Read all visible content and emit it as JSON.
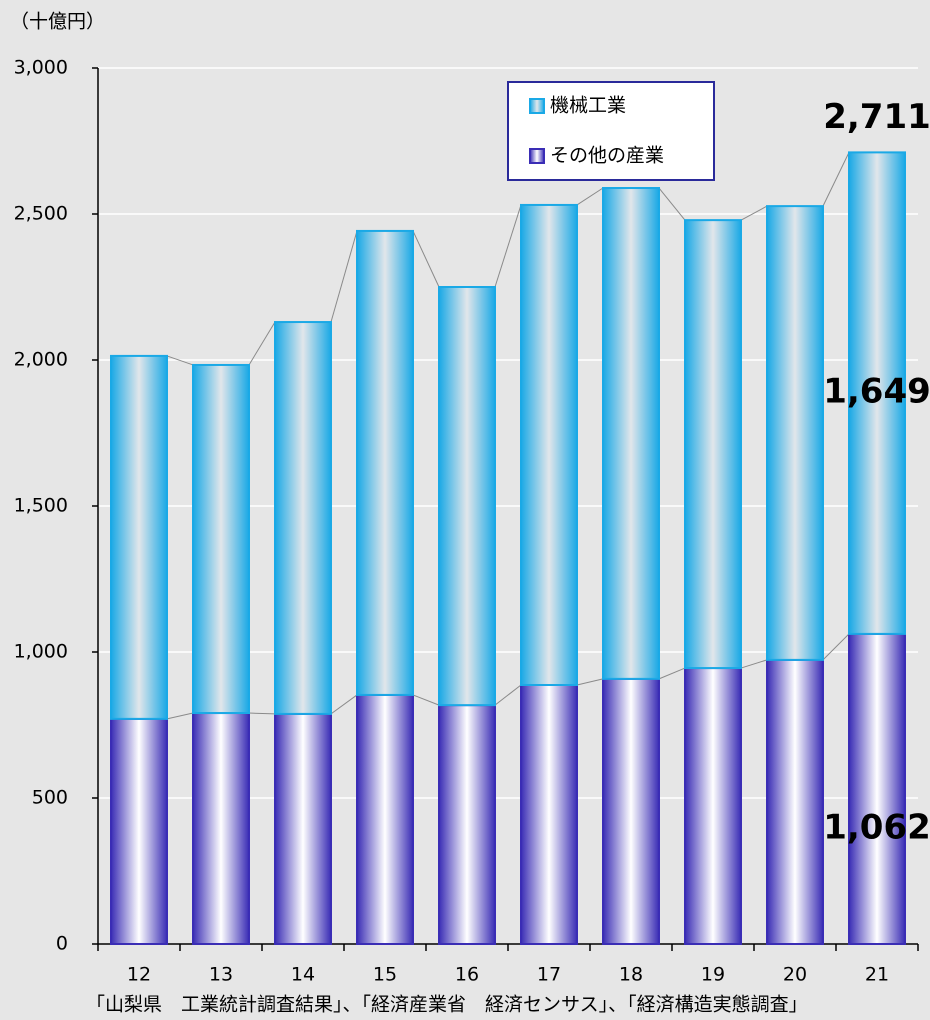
{
  "chart_data": {
    "type": "stacked_bar",
    "y_axis_label": "（十億円）",
    "categories": [
      "12",
      "13",
      "14",
      "15",
      "16",
      "17",
      "18",
      "19",
      "20",
      "21"
    ],
    "series": [
      {
        "name": "その他の産業",
        "color": "#3a2db5",
        "values": [
          771,
          791,
          788,
          853,
          818,
          887,
          908,
          945,
          973,
          1062
        ],
        "value_labels": [
          null,
          null,
          null,
          null,
          null,
          null,
          null,
          null,
          null,
          "1,062"
        ]
      },
      {
        "name": "機械工業",
        "color": "#1aa9e6",
        "values": [
          1243,
          1192,
          1342,
          1589,
          1432,
          1644,
          1681,
          1534,
          1554,
          1649
        ],
        "value_labels": [
          null,
          null,
          null,
          null,
          null,
          null,
          null,
          null,
          null,
          "1,649"
        ]
      }
    ],
    "annotations": [
      {
        "value": 2711,
        "label": "2,711"
      }
    ],
    "ylim": [
      0,
      3000
    ],
    "yticks": [
      0,
      500,
      {
        "value": 1000,
        "label": "1,000"
      },
      {
        "value": 1500,
        "label": "1,500"
      },
      {
        "value": 2000,
        "label": "2,000"
      },
      {
        "value": 2500,
        "label": "2,500"
      },
      {
        "value": 3000,
        "label": "3,000"
      }
    ],
    "grid": true,
    "legend": "top",
    "source": "「山梨県　工業統計調査結果」、「経済産業省　経済センサス」、「経済構造実態調査」"
  }
}
